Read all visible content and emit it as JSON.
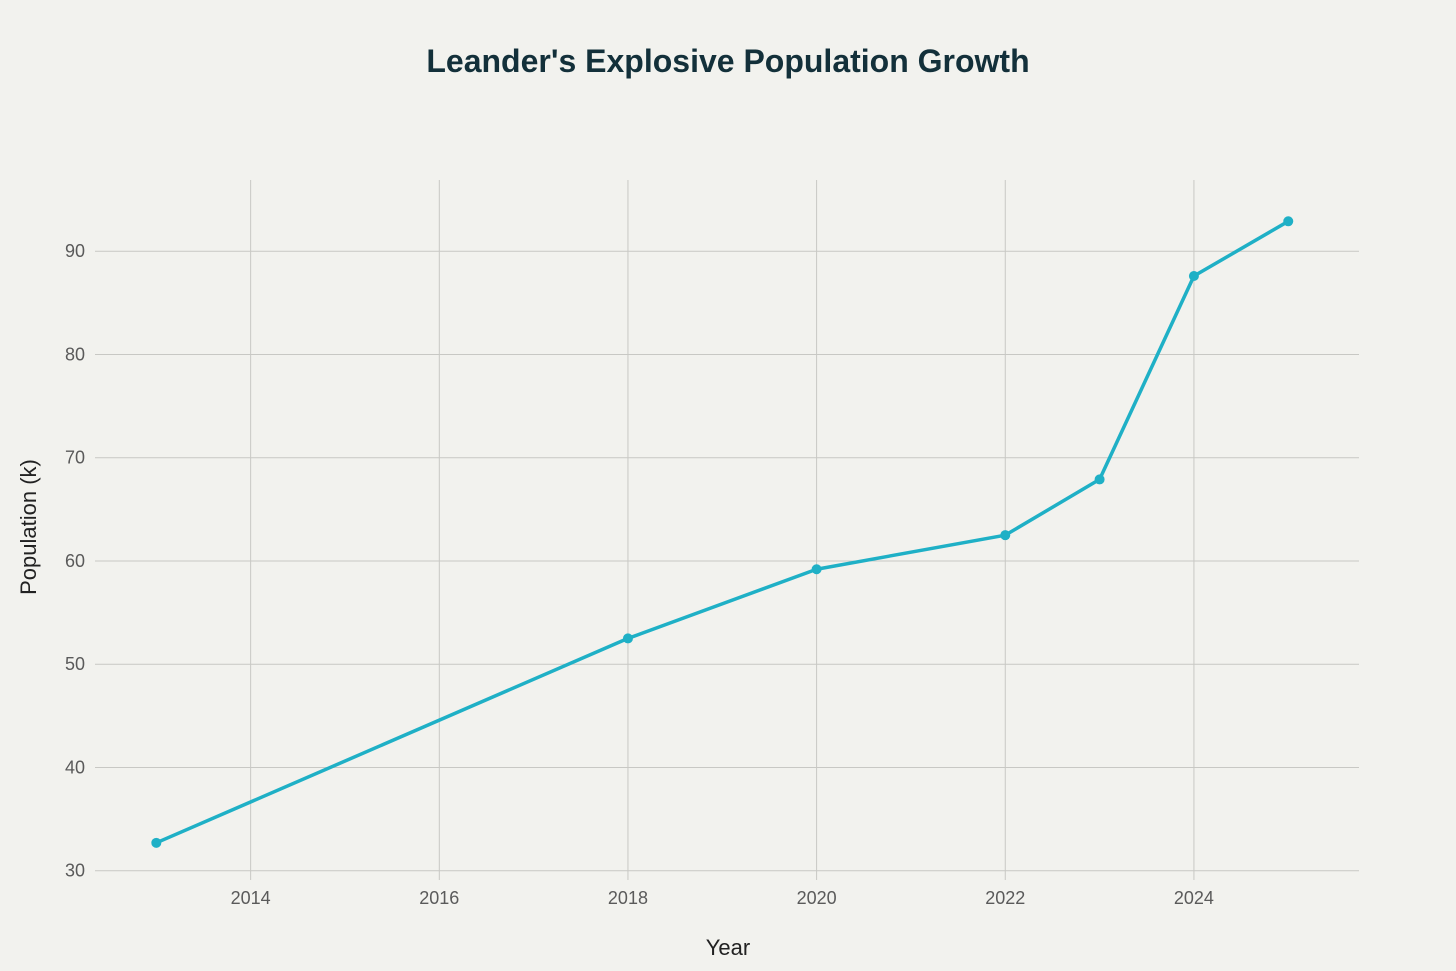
{
  "chart_data": {
    "type": "line",
    "title": "Leander's Explosive Population Growth",
    "xlabel": "Year",
    "ylabel": "Population (k)",
    "xlim": [
      2012.35,
      2025.75
    ],
    "ylim": [
      29.1,
      96.9
    ],
    "x_ticks": [
      2014,
      2016,
      2018,
      2020,
      2022,
      2024
    ],
    "y_ticks": [
      30,
      40,
      50,
      60,
      70,
      80,
      90
    ],
    "grid": true,
    "legend": "none",
    "series": [
      {
        "name": "Population",
        "color": "#1fb0c6",
        "x": [
          2013,
          2018,
          2020,
          2022,
          2023,
          2024,
          2025
        ],
        "y": [
          32.7,
          52.5,
          59.2,
          62.5,
          67.9,
          87.6,
          92.9
        ]
      }
    ]
  }
}
